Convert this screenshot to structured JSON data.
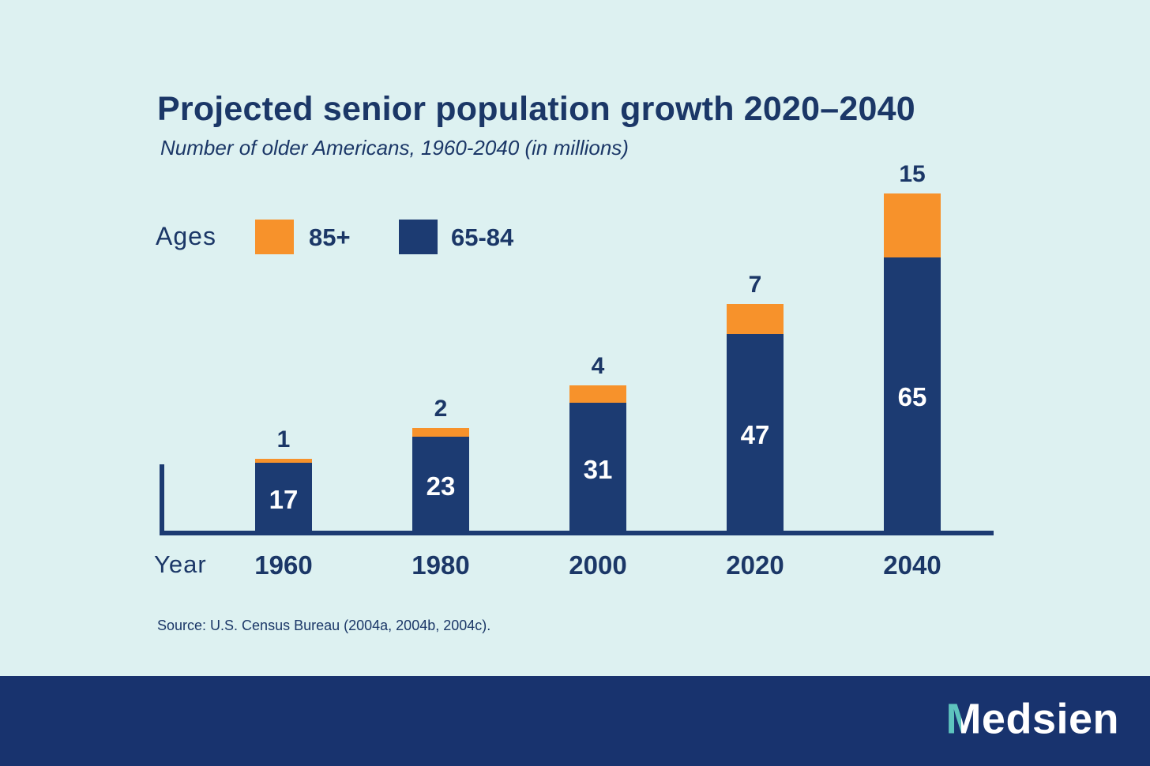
{
  "page": {
    "background": "#DDF1F1",
    "text_navy": "#1B3767",
    "footer_background": "#18336E"
  },
  "chart_data": {
    "type": "bar",
    "stacked": true,
    "title": "Projected senior population growth 2020–2040",
    "subtitle": "Number of older Americans, 1960-2040 (in millions)",
    "legend_title": "Ages",
    "legend_position": "top-left",
    "grid": false,
    "xlabel": "Year",
    "ylabel": "",
    "units": "millions",
    "categories": [
      "1960",
      "1980",
      "2000",
      "2020",
      "2040"
    ],
    "series": [
      {
        "name": "65-84",
        "color": "#1C3B72",
        "values": [
          17,
          23,
          31,
          47,
          65
        ],
        "label_color": "#FFFFFF",
        "label_position": "inside-center"
      },
      {
        "name": "85+",
        "color": "#F7922B",
        "values": [
          1,
          2,
          4,
          7,
          15
        ],
        "label_color": "#1B3767",
        "label_position": "above-bar"
      }
    ],
    "source": "Source: U.S. Census Bureau (2004a, 2004b, 2004c)."
  },
  "footer": {
    "logo_m": "M",
    "logo_rest": "edsien",
    "logo_teal": "#5EC4BE"
  }
}
